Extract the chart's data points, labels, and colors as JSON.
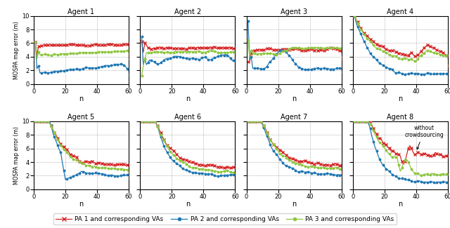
{
  "titles": [
    "Agent 1",
    "Agent 2",
    "Agent 3",
    "Agent 4",
    "Agent 5",
    "Agent 6",
    "Agent 7",
    "Agent 8"
  ],
  "ylabel": "MOSPA map error (m)",
  "xlabel": "n",
  "ylim": [
    0,
    10
  ],
  "xlim": [
    0,
    60
  ],
  "colors": {
    "red": "#d62728",
    "blue": "#1f77b4",
    "green": "#8dc63f"
  },
  "legend": [
    "PA 1 and corresponding VAs",
    "PA 2 and corresponding VAs",
    "PA 3 and corresponding VAs"
  ],
  "note_agent8": "without\ncrowdsourcing",
  "background": "#ffffff"
}
